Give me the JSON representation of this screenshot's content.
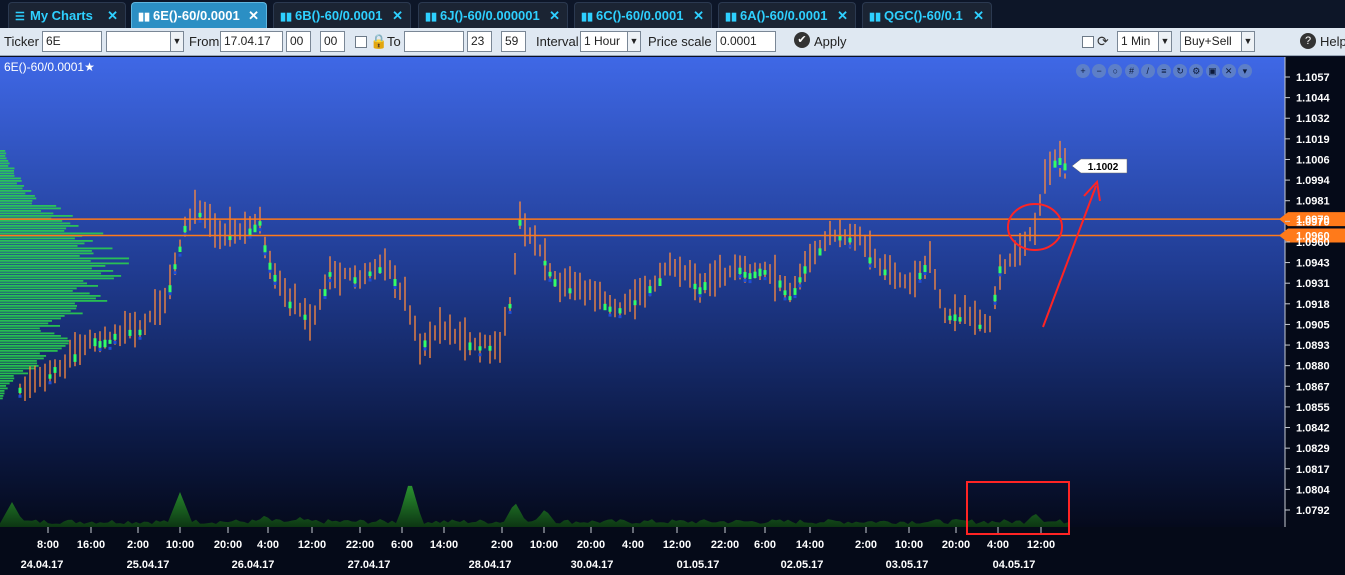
{
  "tabs": [
    {
      "label": "My Charts",
      "icon": "hamburger-icon",
      "active": false
    },
    {
      "label": "6E()-60/0.0001",
      "icon": "bar-chart-icon",
      "active": true
    },
    {
      "label": "6B()-60/0.0001",
      "icon": "bar-chart-icon",
      "active": false
    },
    {
      "label": "6J()-60/0.000001",
      "icon": "bar-chart-icon",
      "active": false
    },
    {
      "label": "6C()-60/0.0001",
      "icon": "bar-chart-icon",
      "active": false
    },
    {
      "label": "6A()-60/0.0001",
      "icon": "bar-chart-icon",
      "active": false
    },
    {
      "label": "QGC()-60/0.1",
      "icon": "bar-chart-icon",
      "active": false
    }
  ],
  "toolbar": {
    "ticker_label": "Ticker",
    "ticker_value": "6E",
    "from_label": "From",
    "from_date": "17.04.17",
    "from_hour": "00",
    "from_minute": "00",
    "to_label": "To",
    "to_date": "",
    "to_hour": "23",
    "to_minute": "59",
    "interval_label": "Interval",
    "interval_value": "1 Hour",
    "price_scale_label": "Price scale",
    "price_scale_value": "0.0001",
    "apply_label": "Apply",
    "timeframe_value": "1 Min",
    "side_value": "Buy+Sell",
    "help_label": "Help"
  },
  "chart": {
    "title": "6E()-60/0.0001",
    "icons": [
      "zoom-in-icon",
      "zoom-out-icon",
      "zoom-reset-icon",
      "grid-icon",
      "draw-icon",
      "list-icon",
      "refresh-icon",
      "settings-icon",
      "fullscreen-icon",
      "close-icon",
      "dropdown-icon"
    ],
    "price_ticks": [
      "1.1057",
      "1.1044",
      "1.1032",
      "1.1019",
      "1.1006",
      "1.0994",
      "1.0981",
      "1.0970",
      "1.0960",
      "1.0943",
      "1.0931",
      "1.0918",
      "1.0905",
      "1.0893",
      "1.0880",
      "1.0867",
      "1.0855",
      "1.0842",
      "1.0829",
      "1.0817",
      "1.0804",
      "1.0792"
    ],
    "time_ticks": [
      "8:00",
      "16:00",
      "2:00",
      "10:00",
      "20:00",
      "4:00",
      "12:00",
      "22:00",
      "6:00",
      "14:00",
      "2:00",
      "10:00",
      "20:00",
      "4:00",
      "12:00",
      "22:00",
      "6:00",
      "14:00",
      "2:00",
      "10:00",
      "20:00",
      "4:00",
      "12:00"
    ],
    "date_ticks": [
      "24.04.17",
      "25.04.17",
      "26.04.17",
      "27.04.17",
      "28.04.17",
      "30.04.17",
      "01.05.17",
      "02.05.17",
      "03.05.17",
      "04.05.17"
    ],
    "levels": [
      {
        "label": "1.0970",
        "value": 1.097,
        "color": "#ff7a1a"
      },
      {
        "label": "1.0960",
        "value": 1.096,
        "color": "#ff7a1a"
      }
    ],
    "last_price": "1.1002",
    "colors": {
      "bar": "#ff8a3d",
      "up_volume": "#33ff66",
      "down_volume": "#1f4ed8",
      "annotation": "#ff2424"
    }
  }
}
